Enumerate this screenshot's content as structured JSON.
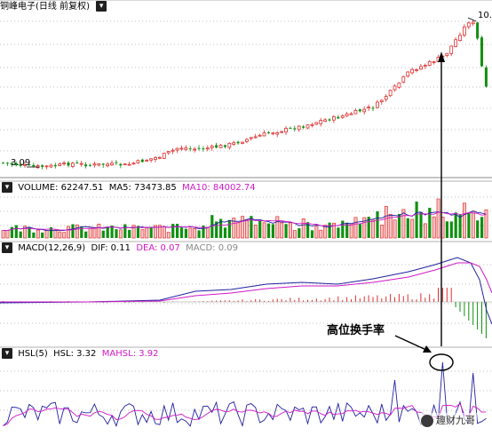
{
  "panels": {
    "price": {
      "title": "铜峰电子(日线 前复权)",
      "low_label": "3.09",
      "high_label": "10."
    },
    "volume": {
      "title": "VOLUME: 62247.51",
      "ma5": "MA5: 73473.85",
      "ma10": "MA10: 84002.74"
    },
    "macd": {
      "title": "MACD(12,26,9)",
      "dif": "DIF: 0.11",
      "dea": "DEA: 0.07",
      "macd": "MACD: 0.09"
    },
    "hsl": {
      "title": "HSL(5)",
      "hsl": "HSL: 3.32",
      "mahsl": "MAHSL: 3.92"
    }
  },
  "annotation": {
    "text": "高位换手率"
  },
  "watermark": {
    "text": "趣财九哥"
  },
  "colors": {
    "up": "#e03030",
    "down": "#109010",
    "ma_magenta": "#d018c8",
    "ma_blue": "#2020a0",
    "grid": "#c0c0c0",
    "panel_border": "#b0b0b0"
  }
}
